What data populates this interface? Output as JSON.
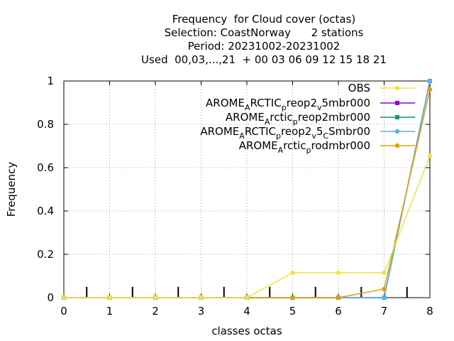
{
  "chart_data": {
    "type": "line",
    "title_lines": [
      "Frequency  for Cloud cover (octas)",
      "Selection: CoastNorway      2 stations",
      "Period: 20231002-20231002",
      "Used  00,03,...,21  + 00 03 06 09 12 15 18 21"
    ],
    "xlabel": "classes octas",
    "ylabel": "Frequency",
    "xlim": [
      0,
      8
    ],
    "ylim": [
      0,
      1
    ],
    "x_ticks": [
      "0",
      "1",
      "2",
      "3",
      "4",
      "5",
      "6",
      "7",
      "8"
    ],
    "y_ticks": [
      "0",
      "0.2",
      "0.4",
      "0.6",
      "0.8",
      "1"
    ],
    "grid": true,
    "legend_position": "top-right",
    "x": [
      0,
      1,
      2,
      3,
      4,
      5,
      6,
      7,
      8
    ],
    "series": [
      {
        "legend_parts": [
          [
            "AROME",
            ""
          ],
          [
            "A",
            "sub"
          ],
          [
            "RCTIC",
            ""
          ],
          [
            "p",
            "sub"
          ],
          [
            "reop2",
            ""
          ],
          [
            "v",
            "sub"
          ],
          [
            "5mbr000",
            ""
          ]
        ],
        "color": "#9400d3",
        "marker": "square",
        "values": [
          0,
          0,
          0,
          0,
          0,
          0,
          0,
          0,
          1.0
        ]
      },
      {
        "legend_parts": [
          [
            "AROME",
            ""
          ],
          [
            "A",
            "sub"
          ],
          [
            "rctic",
            ""
          ],
          [
            "p",
            "sub"
          ],
          [
            "reop2mbr000",
            ""
          ]
        ],
        "color": "#009e73",
        "marker": "square",
        "values": [
          0,
          0,
          0,
          0,
          0,
          0,
          0,
          0,
          1.0
        ]
      },
      {
        "legend_parts": [
          [
            "AROME",
            ""
          ],
          [
            "A",
            "sub"
          ],
          [
            "RCTIC",
            ""
          ],
          [
            "p",
            "sub"
          ],
          [
            "reop2",
            ""
          ],
          [
            "v",
            "sub"
          ],
          [
            "5",
            ""
          ],
          [
            "C",
            "sub"
          ],
          [
            "Smbr00",
            ""
          ]
        ],
        "color": "#56b4e9",
        "marker": "circle",
        "values": [
          0,
          0,
          0,
          0,
          0,
          0,
          0,
          0,
          1.0
        ]
      },
      {
        "legend_parts": [
          [
            "AROME",
            ""
          ],
          [
            "A",
            "sub"
          ],
          [
            "rctic",
            ""
          ],
          [
            "p",
            "sub"
          ],
          [
            "rodmbr000",
            ""
          ]
        ],
        "color": "#e69f00",
        "marker": "circle",
        "values": [
          0,
          0,
          0,
          0,
          0,
          0,
          0,
          0.04,
          0.96
        ]
      },
      {
        "legend_parts": [
          [
            "OBS",
            ""
          ]
        ],
        "color": "#f0e442",
        "marker": "circle",
        "values": [
          0,
          0,
          0,
          0,
          0,
          0.115,
          0.115,
          0.115,
          0.655
        ]
      }
    ],
    "legend_order": [
      4,
      0,
      1,
      2,
      3
    ],
    "tick_marks_x": [
      0.5,
      1.5,
      2.5,
      3.5,
      4.5,
      5.5,
      6.5,
      7.5
    ],
    "tick_marks_y": 0.05
  }
}
